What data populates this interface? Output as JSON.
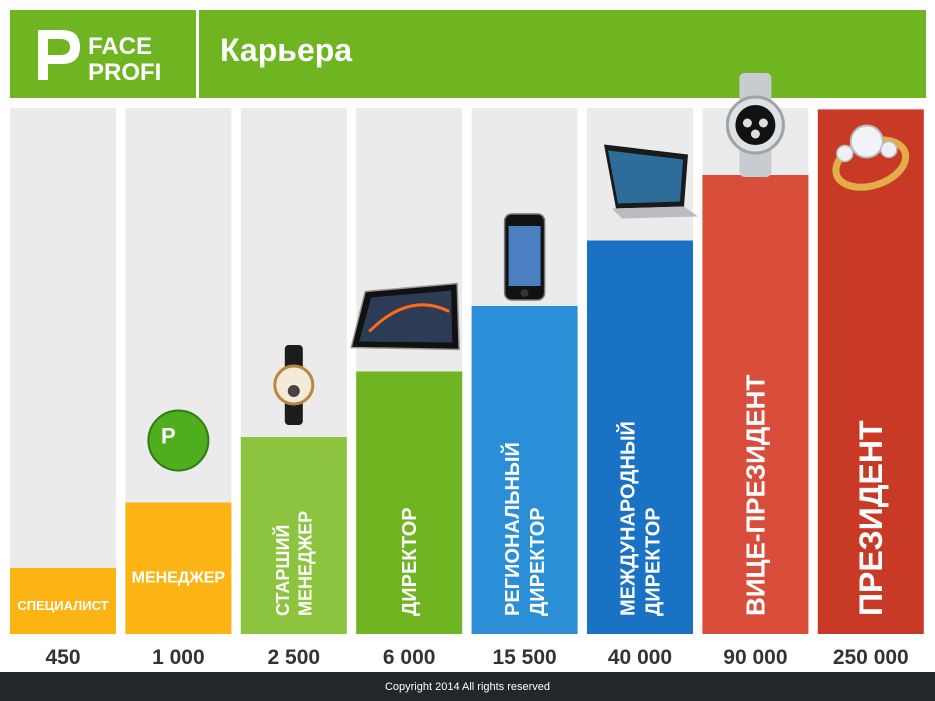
{
  "header": {
    "logo_text_1": "FACE",
    "logo_text_2": "PROFI",
    "title": "Карьера"
  },
  "footer": {
    "copyright": "Copyright 2014 All rights reserved"
  },
  "colors": {
    "header_green": "#6fb421",
    "column_bg": "#ebebeb",
    "footer_dark": "#23272b"
  },
  "chart_data": {
    "type": "bar",
    "title": "Карьера",
    "categories": [
      "СПЕЦИАЛИСТ",
      "МЕНЕДЖЕР",
      "СТАРШИЙ МЕНЕДЖЕР",
      "ДИРЕКТОР",
      "РЕГИОНАЛЬНЫЙ ДИРЕКТОР",
      "МЕЖДУНАРОДНЫЙ ДИРЕКТОР",
      "ВИЦЕ-ПРЕЗИДЕНТ",
      "ПРЕЗИДЕНТ"
    ],
    "value_labels": [
      "450",
      "1 000",
      "2 500",
      "6 000",
      "15 500",
      "40 000",
      "90 000",
      "250 000"
    ],
    "values": [
      450,
      1000,
      2500,
      6000,
      15500,
      40000,
      90000,
      250000
    ],
    "level": [
      1,
      2,
      3,
      4,
      5,
      6,
      7,
      8
    ],
    "bar_colors": [
      "#fcb415",
      "#fcb415",
      "#8cc43f",
      "#6fb421",
      "#2b8fd8",
      "#1a72c4",
      "#d94e3a",
      "#c93a26"
    ],
    "rewards": [
      "",
      "faceprofi-badge",
      "wristwatch",
      "tablet",
      "smartphone",
      "laptop",
      "luxury-watch",
      "diamond-ring"
    ],
    "ylabel": "",
    "xlabel": ""
  }
}
